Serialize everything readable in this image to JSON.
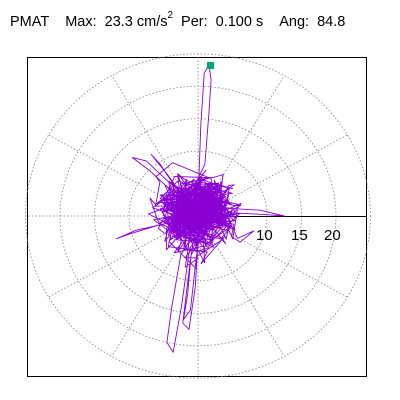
{
  "header": {
    "label": "PMAT",
    "max_label": "Max:",
    "max_value": "23.3 cm/s",
    "max_exp": "2",
    "per_label": "Per:",
    "per_value": "0.100 s",
    "ang_label": "Ang:",
    "ang_value": "84.8"
  },
  "colors": {
    "trace": "#8a00d4",
    "marker": "#00a878",
    "grid": "#808080",
    "axis": "#000000",
    "frame": "#000000"
  },
  "chart_data": {
    "type": "polar-hodogram",
    "units": "cm/s^2",
    "radial_rings": [
      5,
      10,
      15,
      20,
      25
    ],
    "tick_labels": [
      "10",
      "15",
      "20"
    ],
    "max_magnitude": 23.3,
    "max_angle_deg": 84.8,
    "grid": true,
    "series_color": "#8a00d4"
  }
}
